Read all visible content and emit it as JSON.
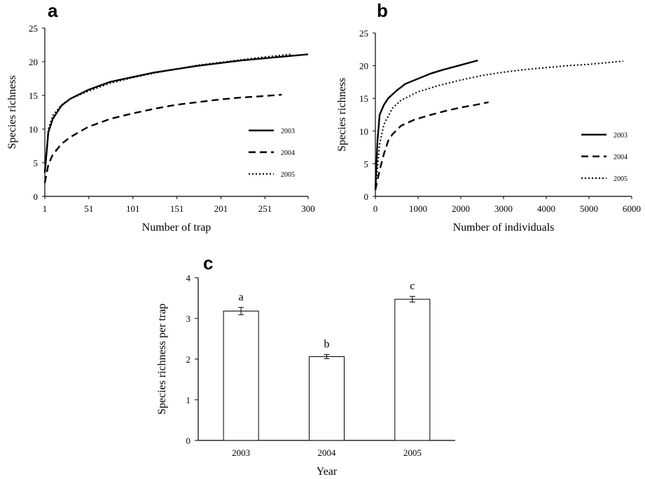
{
  "chart_data": [
    {
      "panel": "a",
      "type": "line",
      "xlabel": "Number of trap",
      "ylabel": "Species richness",
      "xlim": [
        1,
        300
      ],
      "ylim": [
        0,
        25
      ],
      "xticks": [
        "1",
        "51",
        "101",
        "151",
        "201",
        "251",
        "300"
      ],
      "yticks": [
        "0",
        "5",
        "10",
        "15",
        "20",
        "25"
      ],
      "legend_position": "right-middle",
      "series": [
        {
          "name": "2003",
          "style": "solid",
          "x": [
            1,
            5,
            10,
            20,
            30,
            50,
            75,
            100,
            125,
            150,
            175,
            200,
            225,
            250,
            275,
            300
          ],
          "y": [
            3.5,
            9.5,
            11.5,
            13.5,
            14.5,
            15.8,
            17.0,
            17.7,
            18.4,
            18.9,
            19.4,
            19.8,
            20.2,
            20.5,
            20.8,
            21.1
          ]
        },
        {
          "name": "2004",
          "style": "dashed",
          "x": [
            1,
            5,
            10,
            20,
            30,
            50,
            75,
            100,
            125,
            150,
            175,
            200,
            225,
            250,
            270
          ],
          "y": [
            2.0,
            4.7,
            6.2,
            7.8,
            8.8,
            10.3,
            11.5,
            12.3,
            13.0,
            13.6,
            14.0,
            14.4,
            14.7,
            14.9,
            15.1
          ]
        },
        {
          "name": "2005",
          "style": "dotted",
          "x": [
            1,
            5,
            10,
            20,
            30,
            50,
            75,
            100,
            125,
            150,
            175,
            200,
            225,
            250,
            280
          ],
          "y": [
            3.8,
            10.0,
            12.0,
            13.6,
            14.5,
            15.6,
            16.8,
            17.6,
            18.3,
            18.9,
            19.5,
            19.9,
            20.3,
            20.7,
            21.1
          ]
        }
      ]
    },
    {
      "panel": "b",
      "type": "line",
      "xlabel": "Number of individuals",
      "ylabel": "Species richness",
      "xlim": [
        0,
        6000
      ],
      "ylim": [
        0,
        25
      ],
      "xticks": [
        "0",
        "1000",
        "2000",
        "3000",
        "4000",
        "5000",
        "6000"
      ],
      "yticks": [
        "0",
        "5",
        "10",
        "15",
        "20",
        "25"
      ],
      "legend_position": "right-middle",
      "series": [
        {
          "name": "2003",
          "style": "solid",
          "x": [
            0,
            50,
            100,
            200,
            300,
            500,
            700,
            1000,
            1300,
            1600,
            2000,
            2400
          ],
          "y": [
            1.0,
            8.5,
            12.5,
            14.0,
            15.0,
            16.2,
            17.2,
            18.0,
            18.8,
            19.4,
            20.1,
            20.8
          ]
        },
        {
          "name": "2004",
          "style": "dashed",
          "x": [
            0,
            100,
            200,
            300,
            400,
            600,
            900,
            1200,
            1600,
            2000,
            2350,
            2650
          ],
          "y": [
            1.0,
            4.0,
            6.5,
            8.5,
            9.5,
            10.8,
            11.7,
            12.3,
            13.0,
            13.6,
            14.0,
            14.4
          ]
        },
        {
          "name": "2005",
          "style": "dotted",
          "x": [
            0,
            100,
            200,
            400,
            600,
            1000,
            1500,
            2000,
            2500,
            3000,
            3500,
            4000,
            4500,
            5000,
            5500,
            5800
          ],
          "y": [
            1.0,
            8.0,
            11.0,
            13.5,
            14.7,
            16.0,
            17.0,
            17.8,
            18.5,
            19.0,
            19.4,
            19.7,
            20.0,
            20.2,
            20.5,
            20.7
          ]
        }
      ]
    },
    {
      "panel": "c",
      "type": "bar",
      "xlabel": "Year",
      "ylabel": "Species richness per trap",
      "ylim": [
        0,
        4
      ],
      "yticks": [
        "0",
        "1",
        "2",
        "3",
        "4"
      ],
      "categories": [
        "2003",
        "2004",
        "2005"
      ],
      "values": [
        3.18,
        2.06,
        3.47
      ],
      "errors": [
        0.09,
        0.05,
        0.07
      ],
      "significance": [
        "a",
        "b",
        "c"
      ]
    }
  ]
}
